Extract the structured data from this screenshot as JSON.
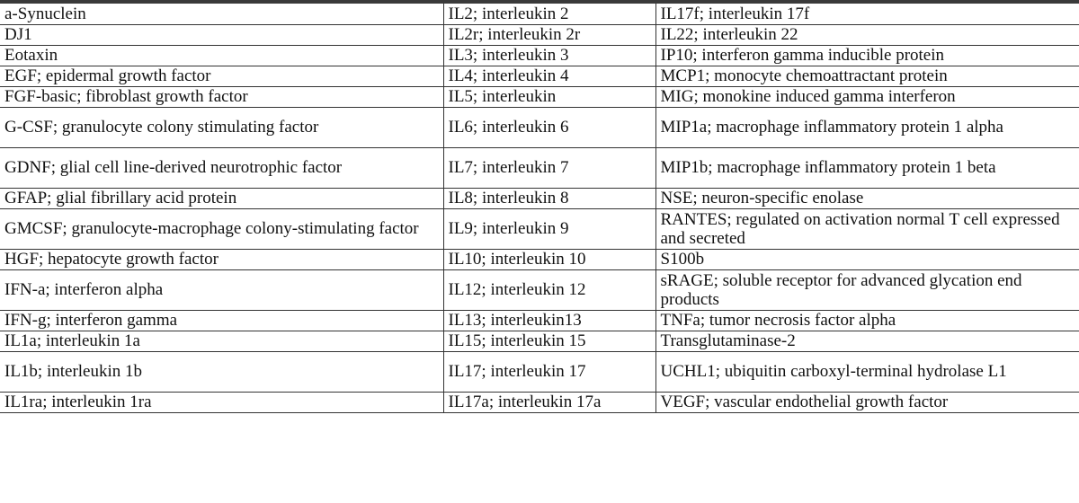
{
  "table": {
    "rows": [
      [
        "a-Synuclein",
        "IL2; interleukin 2",
        "IL17f; interleukin 17f"
      ],
      [
        "DJ1",
        "IL2r; interleukin 2r",
        "IL22; interleukin 22"
      ],
      [
        "Eotaxin",
        "IL3; interleukin 3",
        "IP10; interferon gamma inducible protein"
      ],
      [
        "EGF; epidermal growth factor",
        "IL4; interleukin 4",
        "MCP1; monocyte chemoattractant protein"
      ],
      [
        "FGF-basic; fibroblast growth factor",
        "IL5; interleukin",
        "MIG; monokine induced gamma interferon"
      ],
      [
        "G-CSF; granulocyte colony stimulating factor",
        "IL6; interleukin 6",
        "MIP1a; macrophage inflammatory protein 1 alpha"
      ],
      [
        "GDNF; glial cell line-derived neurotrophic factor",
        "IL7; interleukin 7",
        "MIP1b; macrophage inflammatory protein 1 beta"
      ],
      [
        "GFAP; glial fibrillary acid protein",
        "IL8; interleukin 8",
        "NSE; neuron-specific enolase"
      ],
      [
        "GMCSF; granulocyte-macrophage colony-stimulating factor",
        "IL9; interleukin 9",
        "RANTES; regulated on activation normal T cell expressed and secreted"
      ],
      [
        "HGF; hepatocyte growth factor",
        "IL10; interleukin 10",
        "S100b"
      ],
      [
        "IFN-a; interferon alpha",
        "IL12; interleukin 12",
        "sRAGE; soluble receptor for advanced glycation end products"
      ],
      [
        "IFN-g; interferon gamma",
        "IL13; interleukin13",
        "TNFa; tumor necrosis factor alpha"
      ],
      [
        "IL1a; interleukin 1a",
        "IL15; interleukin 15",
        "Transglutaminase-2"
      ],
      [
        "IL1b; interleukin 1b",
        "IL17; interleukin 17",
        "UCHL1; ubiquitin carboxyl-terminal hydrolase L1"
      ],
      [
        "IL1ra; interleukin 1ra",
        "IL17a; interleukin 17a",
        "VEGF; vascular endothelial growth factor"
      ]
    ]
  }
}
